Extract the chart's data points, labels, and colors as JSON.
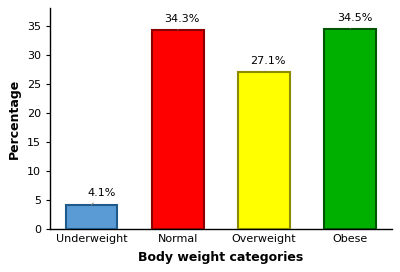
{
  "categories": [
    "Underweight",
    "Normal",
    "Overweight",
    "Obese"
  ],
  "values": [
    4.1,
    34.3,
    27.1,
    34.5
  ],
  "bar_colors": [
    "#5b9bd5",
    "#ff0000",
    "#ffff00",
    "#00b000"
  ],
  "bar_edgecolors": [
    "#1f5a8a",
    "#8b0000",
    "#8b8b00",
    "#005500"
  ],
  "xlabel": "Body weight categories",
  "ylabel": "Percentage",
  "ylim": [
    0,
    38
  ],
  "yticks": [
    0,
    5,
    10,
    15,
    20,
    25,
    30,
    35
  ],
  "title": "",
  "label_fontsize": 9,
  "tick_fontsize": 8,
  "annotation_fontsize": 8,
  "background_color": "#ffffff",
  "bar_width": 0.6
}
